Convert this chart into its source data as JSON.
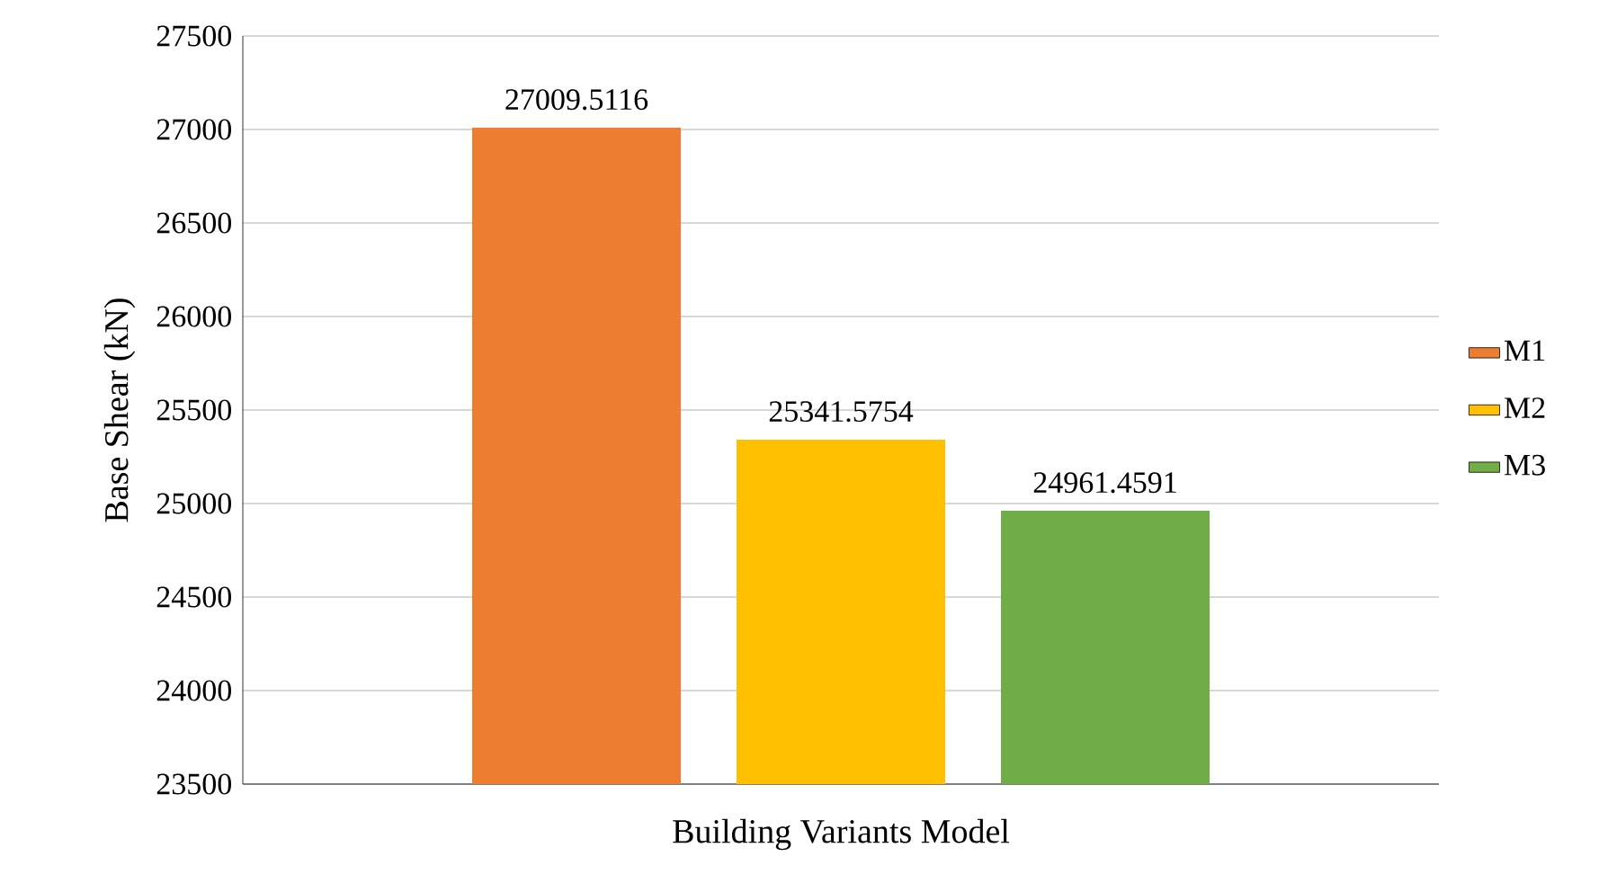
{
  "chart_data": {
    "type": "bar",
    "xlabel": "Building Variants Model",
    "ylabel": "Base Shear (kN)",
    "categories": [
      null
    ],
    "series": [
      {
        "name": "M1",
        "color": "#ed7d31",
        "values": [
          27009.5116
        ]
      },
      {
        "name": "M2",
        "color": "#ffc000",
        "values": [
          25341.5754
        ]
      },
      {
        "name": "M3",
        "color": "#70ad47",
        "values": [
          24961.4591
        ]
      }
    ],
    "ylim": [
      23500,
      27500
    ],
    "yticks": [
      23500,
      24000,
      24500,
      25000,
      25500,
      26000,
      26500,
      27000,
      27500
    ],
    "grid": "y",
    "legend": "right",
    "data_labels": true
  }
}
